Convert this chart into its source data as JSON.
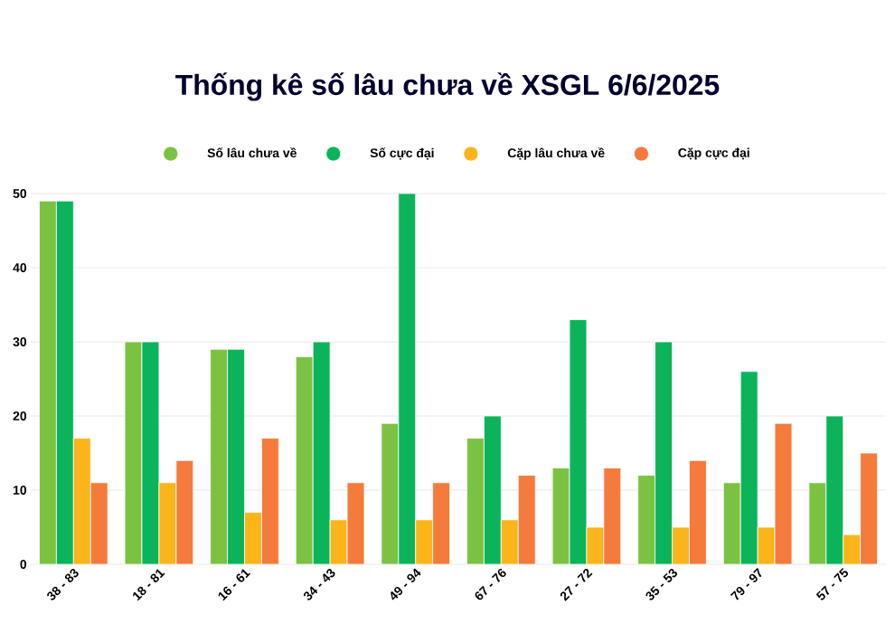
{
  "chart_data": {
    "type": "bar",
    "title": "Thống kê số lâu chưa về XSGL 6/6/2025",
    "categories": [
      "38 - 83",
      "18 - 81",
      "16 - 61",
      "34 - 43",
      "49 - 94",
      "67 - 76",
      "27 - 72",
      "35 - 53",
      "79 - 97",
      "57 - 75"
    ],
    "series": [
      {
        "name": "Số lâu chưa về",
        "color": "#7cc242",
        "values": [
          49,
          30,
          29,
          28,
          19,
          17,
          13,
          12,
          11,
          11
        ]
      },
      {
        "name": "Số cực đại",
        "color": "#0bb45a",
        "values": [
          49,
          30,
          29,
          30,
          50,
          20,
          33,
          30,
          26,
          20
        ]
      },
      {
        "name": "Cặp lâu chưa về",
        "color": "#fbb41a",
        "values": [
          17,
          11,
          7,
          6,
          6,
          6,
          5,
          5,
          5,
          4
        ]
      },
      {
        "name": "Cặp cực đại",
        "color": "#f47b3c",
        "values": [
          11,
          14,
          17,
          11,
          11,
          12,
          13,
          14,
          19,
          15
        ]
      }
    ],
    "ylim": [
      0,
      50
    ],
    "yticks": [
      0,
      10,
      20,
      30,
      40,
      50
    ],
    "grid": "y",
    "legend": "top"
  }
}
